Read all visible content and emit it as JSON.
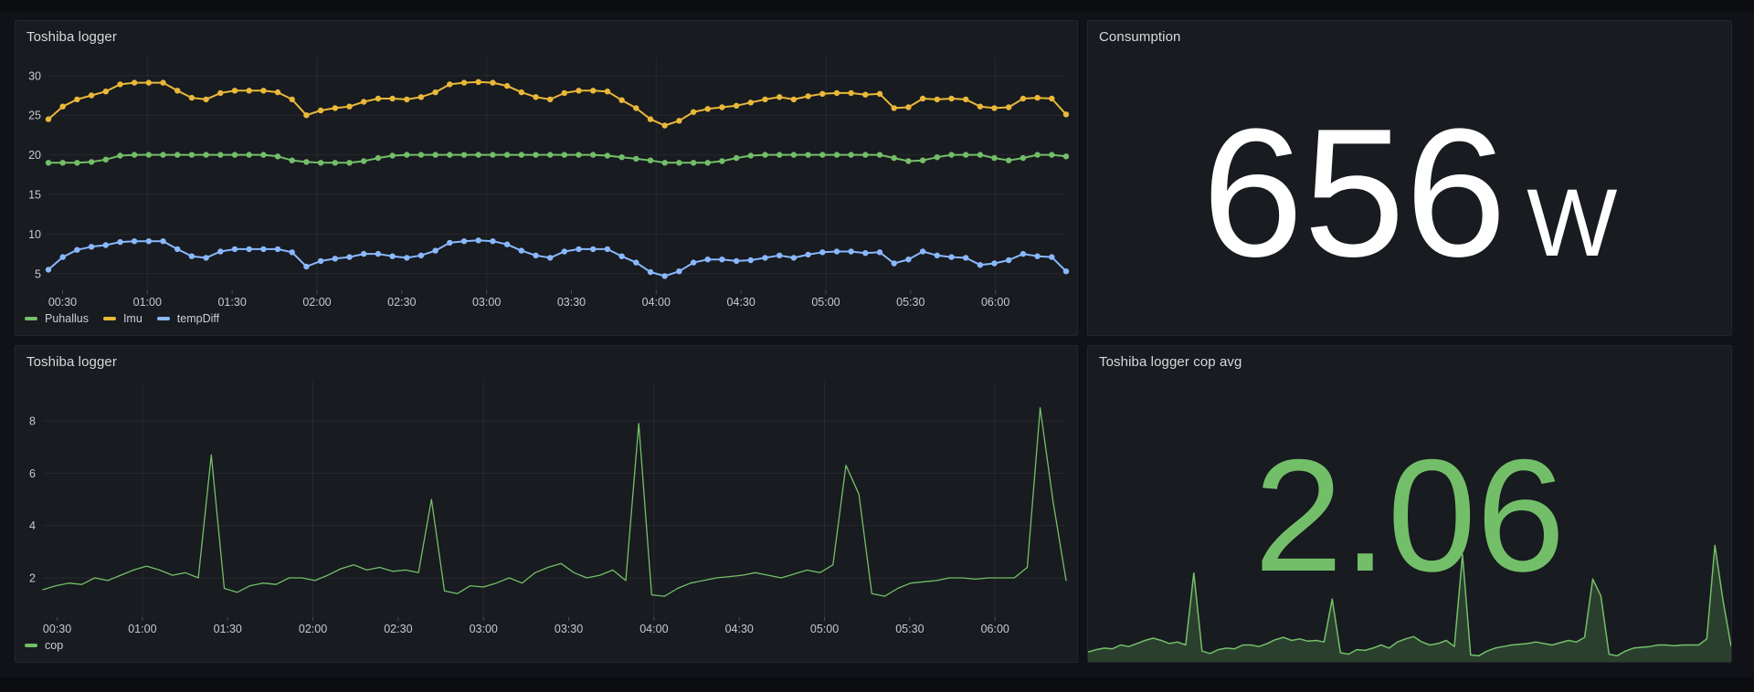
{
  "theme": {
    "background": "#111217",
    "panel_background": "#181b1f",
    "panel_border": "#24262d",
    "title_color": "#d8d9dd",
    "tick_label_color": "#c8c9d4",
    "grid_color": "rgba(204,204,220,0.08)",
    "green": "#73bf69",
    "yellow": "#eab839",
    "blue": "#8ab8ff",
    "stat_white": "#ffffff"
  },
  "chart_data": [
    {
      "panel": "toshiba-logger-temps",
      "type": "line",
      "title": "Toshiba logger",
      "x_start_hour": 0.4167,
      "x_end_hour": 6.4167,
      "x_tick_hours": [
        0.5,
        1.0,
        1.5,
        2.0,
        2.5,
        3.0,
        3.5,
        4.0,
        4.5,
        5.0,
        5.5,
        6.0
      ],
      "x_tick_labels": [
        "00:30",
        "01:00",
        "01:30",
        "02:00",
        "02:30",
        "03:00",
        "03:30",
        "04:00",
        "04:30",
        "05:00",
        "05:30",
        "06:00"
      ],
      "vgrid_hours": [
        1,
        2,
        3,
        4,
        5,
        6
      ],
      "ylim": [
        2.9,
        32.4
      ],
      "y_ticks": [
        5,
        10,
        15,
        20,
        25,
        30
      ],
      "show_points": true,
      "legend_position": "bottom",
      "series": [
        {
          "name": "Puhallus",
          "color": "#73bf69",
          "values": [
            19.0,
            19.0,
            19.0,
            19.1,
            19.4,
            19.9,
            20.0,
            20.0,
            20.0,
            20.0,
            20.0,
            20.0,
            20.0,
            20.0,
            20.0,
            20.0,
            19.8,
            19.3,
            19.1,
            19.0,
            19.0,
            19.0,
            19.2,
            19.6,
            19.9,
            20.0,
            20.0,
            20.0,
            20.0,
            20.0,
            20.0,
            20.0,
            20.0,
            20.0,
            20.0,
            20.0,
            20.0,
            20.0,
            20.0,
            19.9,
            19.7,
            19.5,
            19.3,
            19.0,
            19.0,
            19.0,
            19.0,
            19.2,
            19.6,
            19.9,
            20.0,
            20.0,
            20.0,
            20.0,
            20.0,
            20.0,
            20.0,
            20.0,
            20.0,
            19.6,
            19.2,
            19.3,
            19.7,
            20.0,
            20.0,
            20.0,
            19.6,
            19.3,
            19.6,
            20.0,
            20.0,
            19.8
          ]
        },
        {
          "name": "Imu",
          "color": "#eab839",
          "values": [
            24.5,
            26.1,
            27.0,
            27.5,
            28.0,
            28.9,
            29.1,
            29.1,
            29.1,
            28.1,
            27.2,
            27.0,
            27.8,
            28.1,
            28.1,
            28.1,
            27.9,
            27.0,
            25.0,
            25.6,
            25.9,
            26.1,
            26.7,
            27.1,
            27.1,
            27.0,
            27.3,
            27.9,
            28.9,
            29.1,
            29.2,
            29.1,
            28.7,
            27.9,
            27.3,
            27.0,
            27.8,
            28.1,
            28.1,
            28.0,
            26.9,
            25.9,
            24.5,
            23.7,
            24.3,
            25.4,
            25.8,
            26.0,
            26.2,
            26.6,
            27.0,
            27.3,
            27.0,
            27.4,
            27.7,
            27.8,
            27.8,
            27.6,
            27.7,
            25.9,
            26.0,
            27.1,
            27.0,
            27.1,
            27.0,
            26.1,
            25.9,
            26.0,
            27.1,
            27.2,
            27.1,
            25.1
          ]
        },
        {
          "name": "tempDiff",
          "color": "#8ab8ff",
          "values": [
            5.5,
            7.1,
            8.0,
            8.4,
            8.6,
            9.0,
            9.1,
            9.1,
            9.1,
            8.1,
            7.2,
            7.0,
            7.8,
            8.1,
            8.1,
            8.1,
            8.1,
            7.7,
            5.9,
            6.6,
            6.9,
            7.1,
            7.5,
            7.5,
            7.2,
            7.0,
            7.3,
            7.9,
            8.9,
            9.1,
            9.2,
            9.1,
            8.7,
            7.9,
            7.3,
            7.0,
            7.8,
            8.1,
            8.1,
            8.1,
            7.2,
            6.4,
            5.2,
            4.7,
            5.3,
            6.4,
            6.8,
            6.8,
            6.6,
            6.7,
            7.0,
            7.3,
            7.0,
            7.4,
            7.7,
            7.8,
            7.8,
            7.6,
            7.7,
            6.3,
            6.8,
            7.8,
            7.3,
            7.1,
            7.0,
            6.1,
            6.3,
            6.7,
            7.5,
            7.2,
            7.1,
            5.3
          ]
        }
      ]
    },
    {
      "panel": "consumption",
      "type": "stat",
      "title": "Consumption",
      "value": "656",
      "unit": "W",
      "color": "#ffffff"
    },
    {
      "panel": "toshiba-logger-cop",
      "type": "line",
      "title": "Toshiba logger",
      "x_start_hour": 0.4167,
      "x_end_hour": 6.4167,
      "x_tick_hours": [
        0.5,
        1.0,
        1.5,
        2.0,
        2.5,
        3.0,
        3.5,
        4.0,
        4.5,
        5.0,
        5.5,
        6.0
      ],
      "x_tick_labels": [
        "00:30",
        "01:00",
        "01:30",
        "02:00",
        "02:30",
        "03:00",
        "03:30",
        "04:00",
        "04:30",
        "05:00",
        "05:30",
        "06:00"
      ],
      "vgrid_hours": [
        1,
        2,
        3,
        4,
        5,
        6
      ],
      "ylim": [
        0.5,
        9.5
      ],
      "y_ticks": [
        2,
        4,
        6,
        8
      ],
      "show_points": false,
      "legend_position": "bottom",
      "series": [
        {
          "name": "cop",
          "color": "#73bf69",
          "values": [
            1.55,
            1.7,
            1.8,
            1.75,
            2.0,
            1.9,
            2.1,
            2.3,
            2.45,
            2.3,
            2.1,
            2.2,
            2.0,
            6.7,
            1.6,
            1.45,
            1.7,
            1.8,
            1.75,
            2.0,
            2.0,
            1.9,
            2.1,
            2.35,
            2.5,
            2.3,
            2.4,
            2.25,
            2.3,
            2.2,
            5.0,
            1.5,
            1.4,
            1.7,
            1.65,
            1.8,
            2.0,
            1.8,
            2.2,
            2.4,
            2.55,
            2.2,
            2.0,
            2.1,
            2.3,
            1.9,
            7.9,
            1.35,
            1.3,
            1.6,
            1.8,
            1.9,
            2.0,
            2.05,
            2.1,
            2.2,
            2.1,
            2.0,
            2.15,
            2.3,
            2.2,
            2.5,
            6.3,
            5.2,
            1.4,
            1.3,
            1.6,
            1.8,
            1.85,
            1.9,
            2.0,
            2.0,
            1.95,
            2.0,
            2.0,
            2.0,
            2.4,
            8.5,
            4.9,
            1.9
          ]
        }
      ]
    },
    {
      "panel": "toshiba-logger-cop-avg",
      "type": "stat",
      "title": "Toshiba logger cop avg",
      "value": "2.06",
      "color": "#73bf69",
      "sparkline": {
        "color": "#73bf69",
        "fill_opacity": 0.22,
        "ylim": [
          0.9,
          9.0
        ],
        "source_chart_index": 2,
        "source_series": "cop"
      }
    }
  ]
}
